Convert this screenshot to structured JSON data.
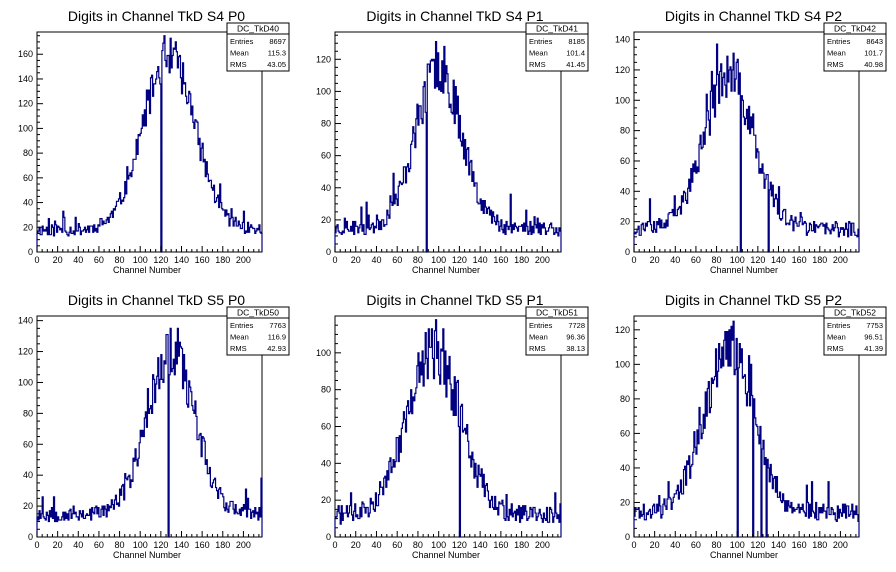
{
  "colors": {
    "histogram": "#000080",
    "axis": "#000000",
    "background": "#ffffff"
  },
  "chart_data": [
    {
      "type": "histogram",
      "title": "Digits in Channel TkD S4 P0",
      "xlabel": "Channel Number",
      "xlim": [
        0,
        218
      ],
      "ylim": [
        0,
        178
      ],
      "xticks": [
        0,
        20,
        40,
        60,
        80,
        100,
        120,
        140,
        160,
        180,
        200
      ],
      "yticks": [
        0,
        20,
        40,
        60,
        80,
        100,
        120,
        140,
        160
      ],
      "stats": {
        "name": "DC_TkD40",
        "entries": "8697",
        "mean": "115.3",
        "rms": "43.05"
      },
      "peak": {
        "center": 128,
        "width": 25,
        "height": 140,
        "baseline": 18,
        "max": 170,
        "max_at": 134
      },
      "spikes": [
        [
          120,
          0
        ]
      ],
      "noise_seed": 11
    },
    {
      "type": "histogram",
      "title": "Digits in Channel TkD S4 P1",
      "xlabel": "Channel Number",
      "xlim": [
        0,
        218
      ],
      "ylim": [
        0,
        137
      ],
      "xticks": [
        0,
        20,
        40,
        60,
        80,
        100,
        120,
        140,
        160,
        180,
        200
      ],
      "yticks": [
        0,
        20,
        40,
        60,
        80,
        100,
        120
      ],
      "stats": {
        "name": "DC_TkD41",
        "entries": "8185",
        "mean": "101.4",
        "rms": "41.45"
      },
      "peak": {
        "center": 100,
        "width": 22,
        "height": 100,
        "baseline": 15,
        "max": 128,
        "max_at": 105
      },
      "spikes": [
        [
          88,
          0
        ]
      ],
      "noise_seed": 23
    },
    {
      "type": "histogram",
      "title": "Digits in Channel TkD S4 P2",
      "xlabel": "Channel Number",
      "xlim": [
        0,
        218
      ],
      "ylim": [
        0,
        145
      ],
      "xticks": [
        0,
        20,
        40,
        60,
        80,
        100,
        120,
        140,
        160,
        180,
        200
      ],
      "yticks": [
        0,
        20,
        40,
        60,
        80,
        100,
        120,
        140
      ],
      "stats": {
        "name": "DC_TkD42",
        "entries": "8643",
        "mean": "101.7",
        "rms": "40.98"
      },
      "peak": {
        "center": 92,
        "width": 24,
        "height": 100,
        "baseline": 15,
        "max": 137,
        "max_at": 80
      },
      "spikes": [
        [
          103,
          0
        ],
        [
          130,
          0
        ]
      ],
      "noise_seed": 37
    },
    {
      "type": "histogram",
      "title": "Digits in Channel TkD S5 P0",
      "xlabel": "Channel Number",
      "xlim": [
        0,
        218
      ],
      "ylim": [
        0,
        143
      ],
      "xticks": [
        0,
        20,
        40,
        60,
        80,
        100,
        120,
        140,
        160,
        180,
        200
      ],
      "yticks": [
        0,
        20,
        40,
        60,
        80,
        100,
        120,
        140
      ],
      "stats": {
        "name": "DC_TkD50",
        "entries": "7763",
        "mean": "116.9",
        "rms": "42.93"
      },
      "peak": {
        "center": 130,
        "width": 23,
        "height": 105,
        "baseline": 15,
        "max": 135,
        "max_at": 136
      },
      "spikes": [
        [
          127,
          0
        ]
      ],
      "noise_seed": 53
    },
    {
      "type": "histogram",
      "title": "Digits in Channel TkD S5 P1",
      "xlabel": "Channel Number",
      "xlim": [
        0,
        218
      ],
      "ylim": [
        0,
        120
      ],
      "xticks": [
        0,
        20,
        40,
        60,
        80,
        100,
        120,
        140,
        160,
        180,
        200
      ],
      "yticks": [
        0,
        20,
        40,
        60,
        80,
        100
      ],
      "stats": {
        "name": "DC_TkD51",
        "entries": "7728",
        "mean": "96.36",
        "rms": "38.13"
      },
      "peak": {
        "center": 95,
        "width": 26,
        "height": 88,
        "baseline": 12,
        "max": 113,
        "max_at": 104
      },
      "spikes": [
        [
          120,
          0
        ]
      ],
      "noise_seed": 71
    },
    {
      "type": "histogram",
      "title": "Digits in Channel TkD S5 P2",
      "xlabel": "Channel Number",
      "xlim": [
        0,
        218
      ],
      "ylim": [
        0,
        128
      ],
      "xticks": [
        0,
        20,
        40,
        60,
        80,
        100,
        120,
        140,
        160,
        180,
        200
      ],
      "yticks": [
        0,
        20,
        40,
        60,
        80,
        100,
        120
      ],
      "stats": {
        "name": "DC_TkD52",
        "entries": "7753",
        "mean": "96.51",
        "rms": "41.39"
      },
      "peak": {
        "center": 92,
        "width": 24,
        "height": 95,
        "baseline": 14,
        "max": 120,
        "max_at": 92
      },
      "spikes": [
        [
          100,
          0
        ],
        [
          115,
          0
        ],
        [
          123,
          0
        ],
        [
          128,
          0
        ]
      ],
      "noise_seed": 89
    }
  ]
}
